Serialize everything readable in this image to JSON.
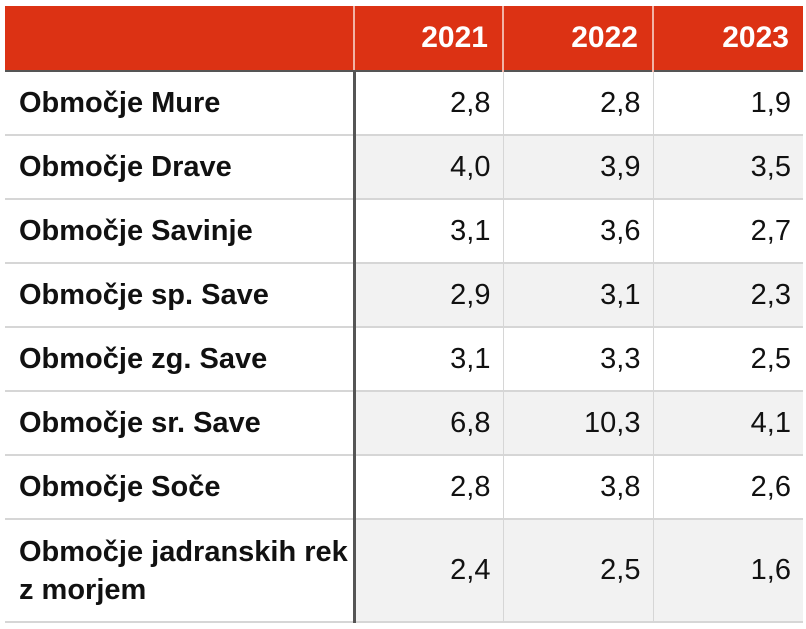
{
  "chart_data": {
    "type": "table",
    "columns": [
      "",
      "2021",
      "2022",
      "2023"
    ],
    "rows": [
      {
        "label": "Območje Mure",
        "values": [
          "2,8",
          "2,8",
          "1,9"
        ]
      },
      {
        "label": "Območje Drave",
        "values": [
          "4,0",
          "3,9",
          "3,5"
        ]
      },
      {
        "label": "Območje Savinje",
        "values": [
          "3,1",
          "3,6",
          "2,7"
        ]
      },
      {
        "label": "Območje sp. Save",
        "values": [
          "2,9",
          "3,1",
          "2,3"
        ]
      },
      {
        "label": "Območje zg. Save",
        "values": [
          "3,1",
          "3,3",
          "2,5"
        ]
      },
      {
        "label": "Območje sr. Save",
        "values": [
          "6,8",
          "10,3",
          "4,1"
        ]
      },
      {
        "label": "Območje Soče",
        "values": [
          "2,8",
          "3,8",
          "2,6"
        ]
      },
      {
        "label": "Območje jadranskih rek z morjem",
        "values": [
          "2,4",
          "2,5",
          "1,6"
        ]
      }
    ],
    "header_color": "#dc3214"
  }
}
